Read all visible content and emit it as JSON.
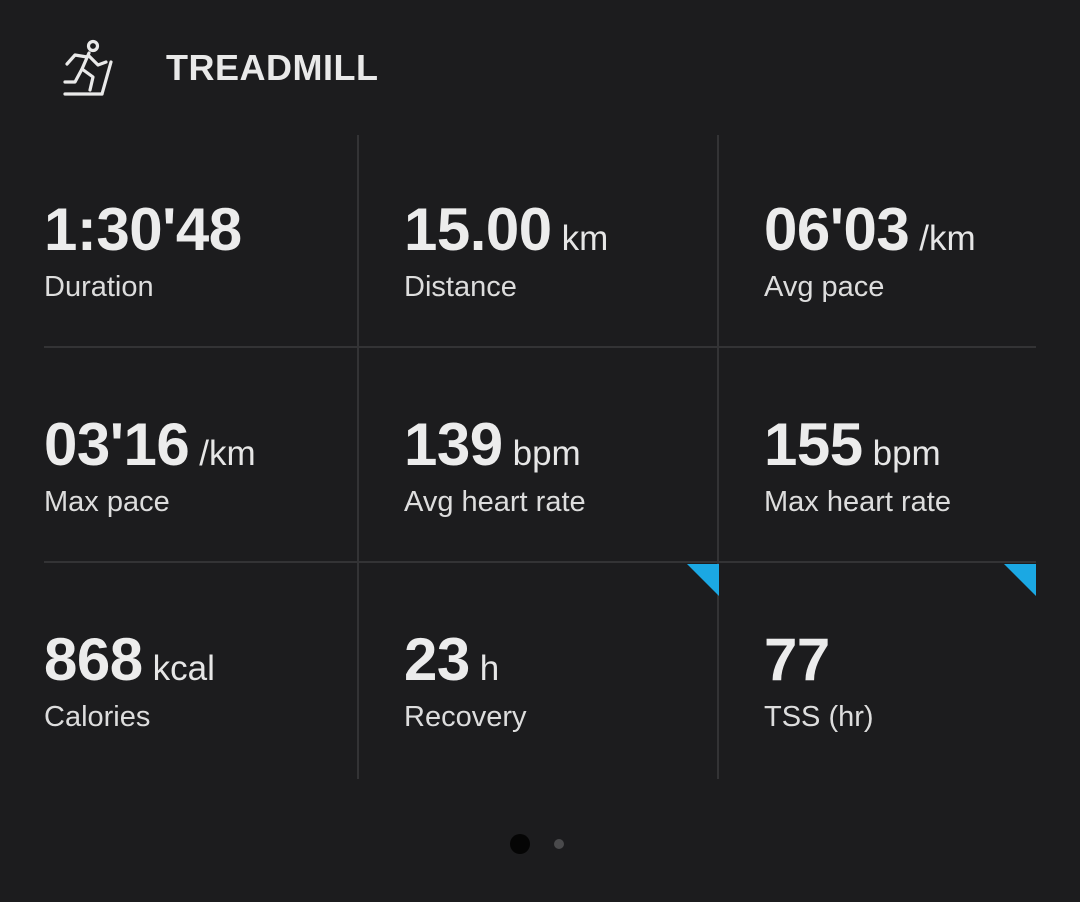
{
  "header": {
    "title": "TREADMILL",
    "icon": "treadmill-runner-icon"
  },
  "stats": [
    {
      "value": "1:30'48",
      "unit": "",
      "label": "Duration"
    },
    {
      "value": "15.00",
      "unit": "km",
      "label": "Distance"
    },
    {
      "value": "06'03",
      "unit": "/km",
      "label": "Avg pace"
    },
    {
      "value": "03'16",
      "unit": "/km",
      "label": "Max pace"
    },
    {
      "value": "139",
      "unit": "bpm",
      "label": "Avg heart rate"
    },
    {
      "value": "155",
      "unit": "bpm",
      "label": "Max heart rate"
    },
    {
      "value": "868",
      "unit": "kcal",
      "label": "Calories"
    },
    {
      "value": "23",
      "unit": "h",
      "label": "Recovery"
    },
    {
      "value": "77",
      "unit": "",
      "label": "TSS (hr)"
    }
  ],
  "colors": {
    "background": "#1c1c1e",
    "accent_flag": "#1ba8e3",
    "divider": "#333335"
  },
  "pager": {
    "total_pages": 2,
    "active_page": 1
  }
}
